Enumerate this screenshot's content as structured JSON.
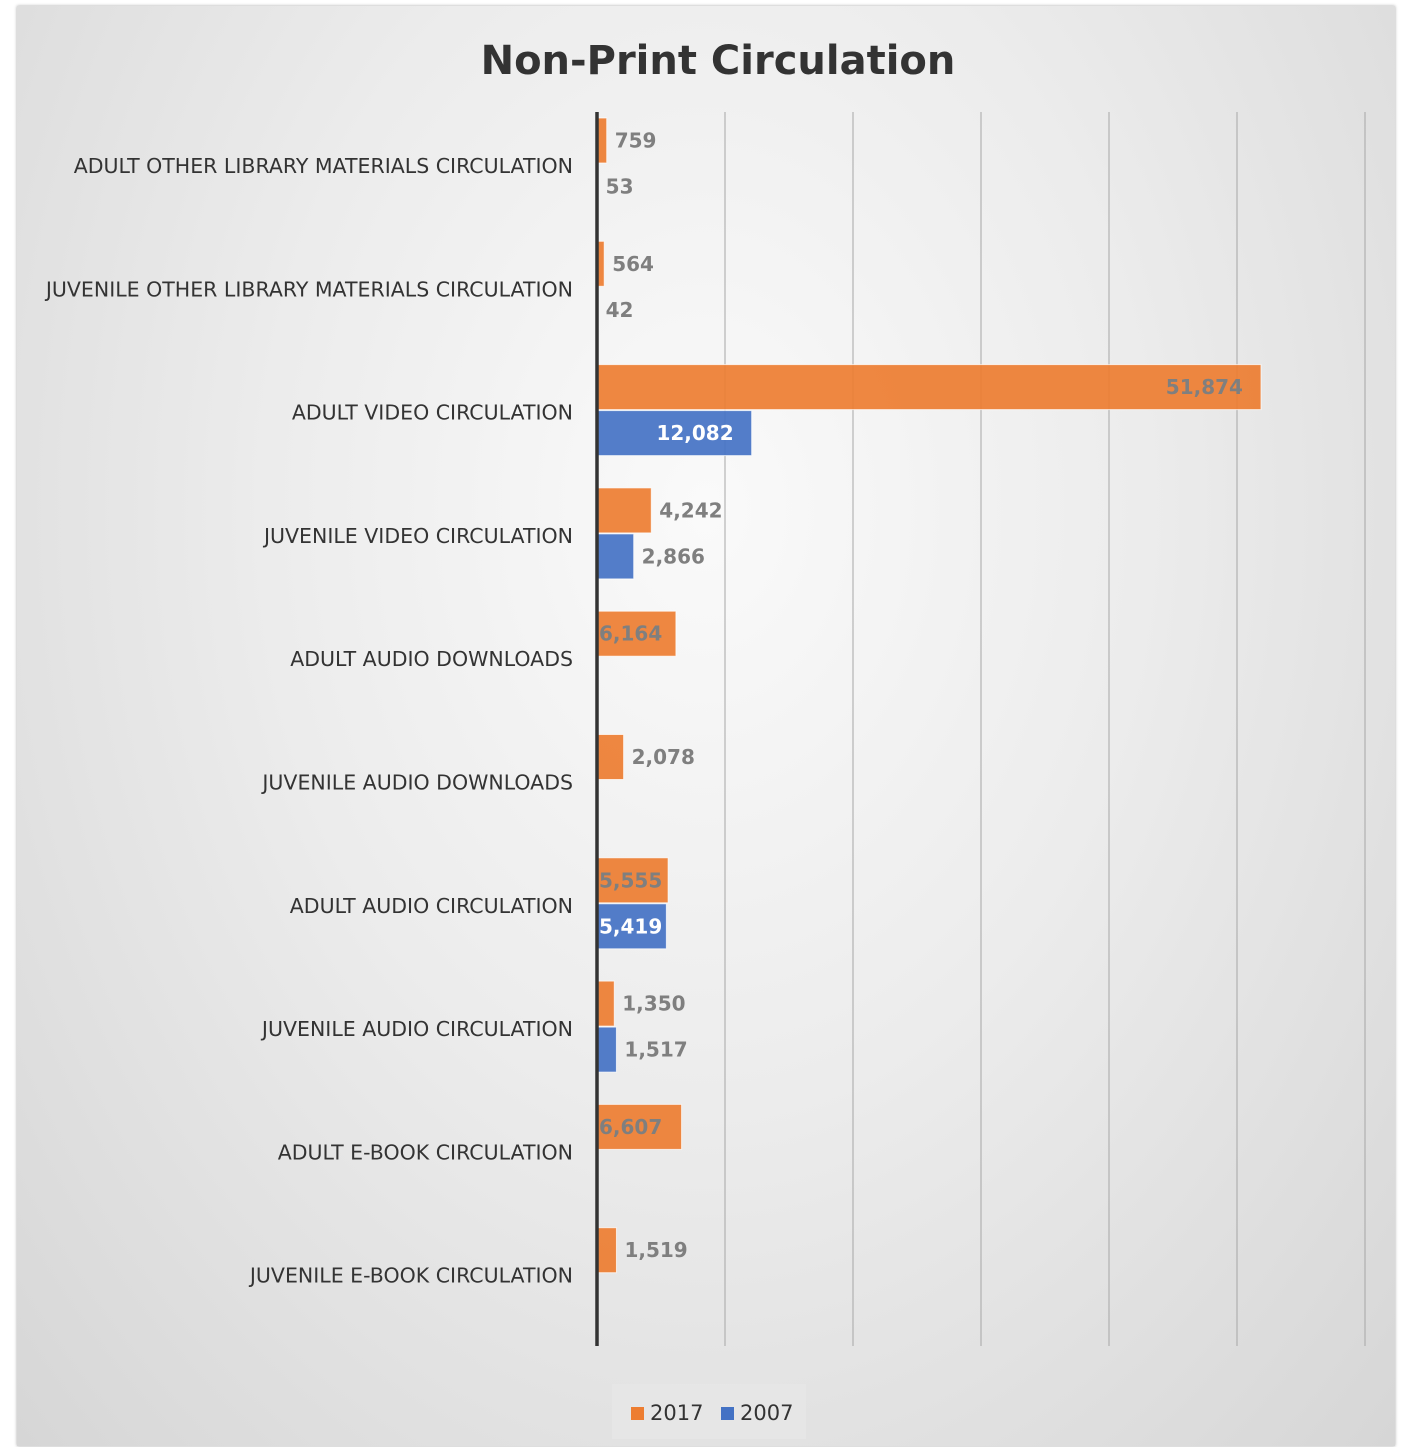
{
  "chart_data": {
    "type": "bar",
    "orientation": "horizontal",
    "title": "Non-Print Circulation",
    "xlabel": "",
    "ylabel": "",
    "xlim": [
      0,
      60000
    ],
    "grid": true,
    "legend_position": "bottom",
    "categories": [
      "ADULT OTHER LIBRARY MATERIALS CIRCULATION",
      "JUVENILE OTHER LIBRARY MATERIALS CIRCULATION",
      "ADULT VIDEO  CIRCULATION",
      "JUVENILE VIDEO CIRCULATION",
      "ADULT AUDIO DOWNLOADS",
      "JUVENILE AUDIO DOWNLOADS",
      "ADULT AUDIO  CIRCULATION",
      "JUVENILE AUDIO CIRCULATION",
      "ADULT E-BOOK CIRCULATION",
      "JUVENILE E-BOOK CIRCULATION"
    ],
    "series": [
      {
        "name": "2017",
        "color": "#ED7D31",
        "values": [
          759,
          564,
          51874,
          4242,
          6164,
          2078,
          5555,
          1350,
          6607,
          1519
        ],
        "labels": [
          "759",
          "564",
          "51,874",
          "4,242",
          "6,164",
          "2,078",
          "5,555",
          "1,350",
          "6,607",
          "1,519"
        ]
      },
      {
        "name": "2007",
        "color": "#4472C4",
        "values": [
          53,
          42,
          12082,
          2866,
          null,
          null,
          5419,
          1517,
          null,
          null
        ],
        "labels": [
          "53",
          "42",
          "12,082",
          "2,866",
          null,
          null,
          "5,419",
          "1,517",
          null,
          null
        ]
      }
    ]
  }
}
